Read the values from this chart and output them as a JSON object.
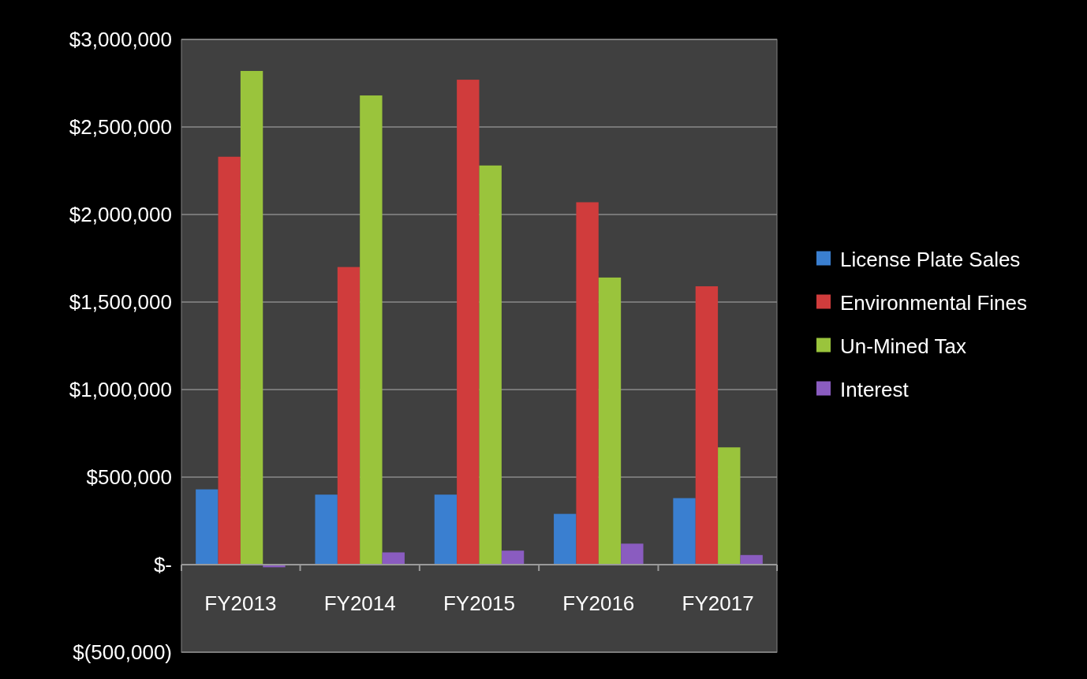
{
  "chart_data": {
    "type": "bar",
    "categories": [
      "FY2013",
      "FY2014",
      "FY2015",
      "FY2016",
      "FY2017"
    ],
    "series": [
      {
        "name": "License Plate Sales",
        "color": "#3a7fd0",
        "values": [
          430000,
          400000,
          400000,
          290000,
          380000
        ]
      },
      {
        "name": "Environmental Fines",
        "color": "#d03c3c",
        "values": [
          2330000,
          1700000,
          2770000,
          2070000,
          1590000
        ]
      },
      {
        "name": "Un-Mined Tax",
        "color": "#9ac43c",
        "values": [
          2820000,
          2680000,
          2280000,
          1640000,
          670000
        ]
      },
      {
        "name": "Interest",
        "color": "#8a5cc0",
        "values": [
          -15000,
          70000,
          80000,
          120000,
          55000
        ]
      }
    ],
    "ylim": [
      -500000,
      3000000
    ],
    "yticks": [
      {
        "value": -500000,
        "label": "$(500,000)"
      },
      {
        "value": 0,
        "label": "$-"
      },
      {
        "value": 500000,
        "label": "$500,000"
      },
      {
        "value": 1000000,
        "label": "$1,000,000"
      },
      {
        "value": 1500000,
        "label": "$1,500,000"
      },
      {
        "value": 2000000,
        "label": "$2,000,000"
      },
      {
        "value": 2500000,
        "label": "$2,500,000"
      },
      {
        "value": 3000000,
        "label": "$3,000,000"
      }
    ],
    "grid": "y",
    "legend": "right"
  }
}
